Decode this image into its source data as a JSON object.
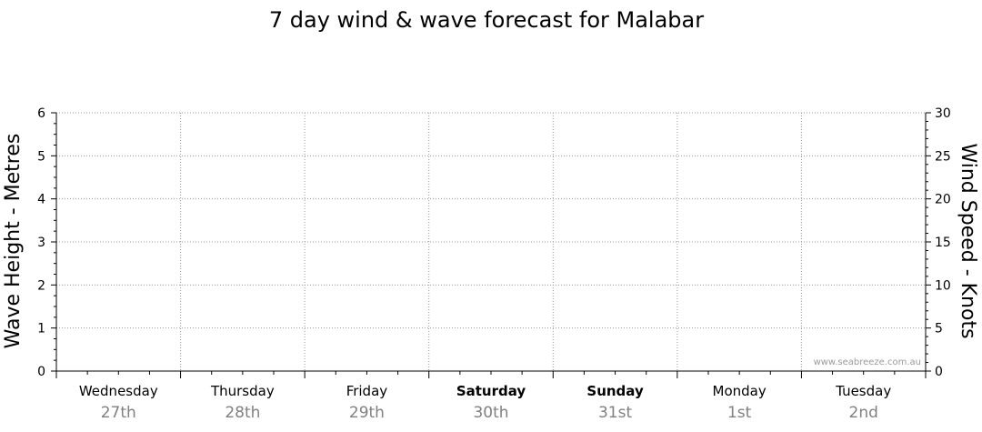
{
  "chart_data": {
    "type": "line",
    "title": "7 day wind & wave forecast for Malabar",
    "y_left": {
      "label": "Wave Height - Metres",
      "ylim": [
        0,
        6
      ],
      "ticks": [
        "0",
        "1",
        "2",
        "3",
        "4",
        "5",
        "6"
      ]
    },
    "y_right": {
      "label": "Wind Speed - Knots",
      "ylim": [
        0,
        30
      ],
      "ticks": [
        "0",
        "5",
        "10",
        "15",
        "20",
        "25",
        "30"
      ]
    },
    "days": [
      {
        "name": "Wednesday",
        "date": "27th",
        "bold": false
      },
      {
        "name": "Thursday",
        "date": "28th",
        "bold": false
      },
      {
        "name": "Friday",
        "date": "29th",
        "bold": false
      },
      {
        "name": "Saturday",
        "date": "30th",
        "bold": true
      },
      {
        "name": "Sunday",
        "date": "31st",
        "bold": true
      },
      {
        "name": "Monday",
        "date": "1st",
        "bold": false
      },
      {
        "name": "Tuesday",
        "date": "2nd",
        "bold": false
      }
    ],
    "series": [],
    "grid": true,
    "watermark": "www.seabreeze.com.au",
    "colors": {
      "grid": "#999999",
      "axis": "#000000",
      "date_text": "#808080",
      "watermark": "#9a9a9a"
    }
  }
}
